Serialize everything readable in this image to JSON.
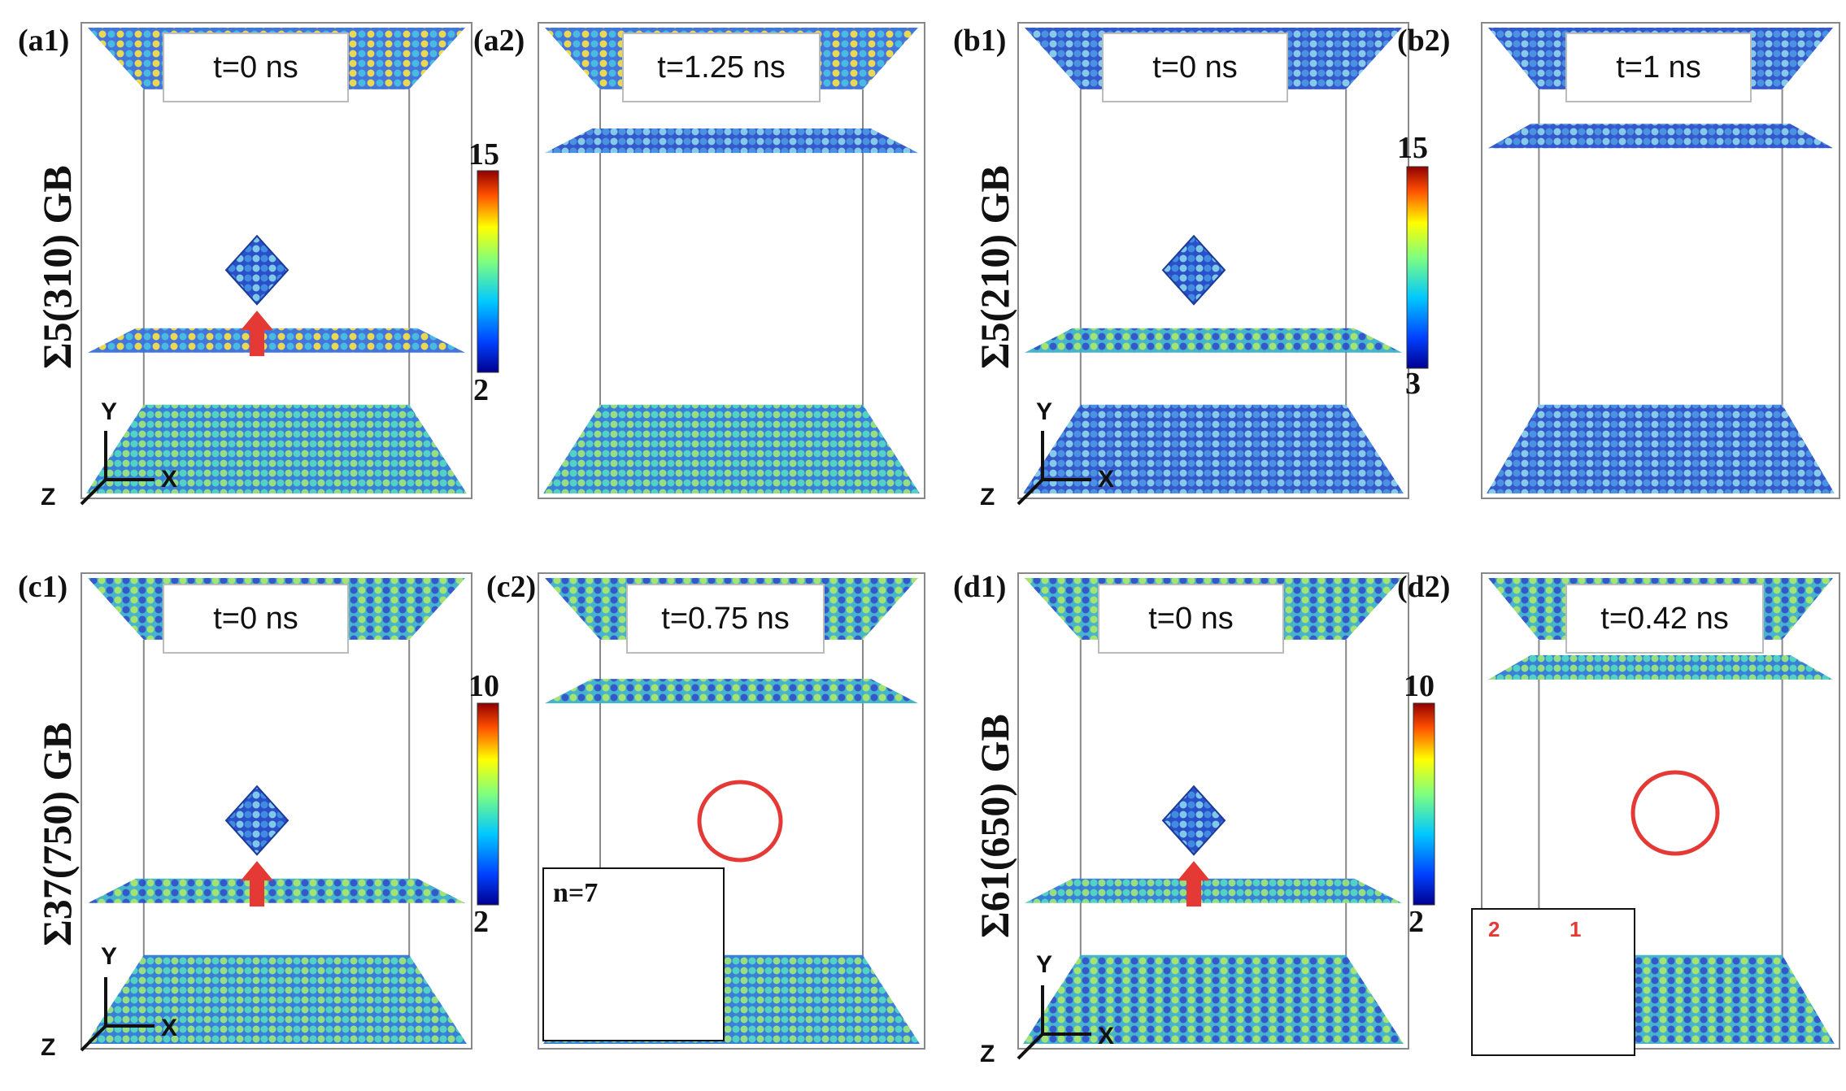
{
  "panels": [
    {
      "id": "a1",
      "label": "(a1)",
      "time": "t=0 ns"
    },
    {
      "id": "a2",
      "label": "(a2)",
      "time": "t=1.25 ns"
    },
    {
      "id": "b1",
      "label": "(b1)",
      "time": "t=0 ns"
    },
    {
      "id": "b2",
      "label": "(b2)",
      "time": "t=1 ns"
    },
    {
      "id": "c1",
      "label": "(c1)",
      "time": "t=0 ns"
    },
    {
      "id": "c2",
      "label": "(c2)",
      "time": "t=0.75 ns"
    },
    {
      "id": "d1",
      "label": "(d1)",
      "time": "t=0 ns"
    },
    {
      "id": "d2",
      "label": "(d2)",
      "time": "t=0.42 ns"
    }
  ],
  "row_labels": {
    "a": "Σ5(310) GB",
    "b": "Σ5(210) GB",
    "c": "Σ37(750) GB",
    "d": "Σ61(650) GB"
  },
  "colorbars": [
    {
      "max": "15",
      "min": "2"
    },
    {
      "max": "15",
      "min": "3"
    },
    {
      "max": "10",
      "min": "2"
    },
    {
      "max": "10",
      "min": "2"
    }
  ],
  "axes": {
    "x": "X",
    "y": "Y",
    "z": "Z"
  },
  "insets": {
    "c2_label": "n=7",
    "d2_num1": "1",
    "d2_num2": "2"
  },
  "colors": {
    "arrow": "#e53935",
    "frame": "#888888",
    "atom_blue": "#2f58d6",
    "atom_green": "#9fe06a"
  }
}
